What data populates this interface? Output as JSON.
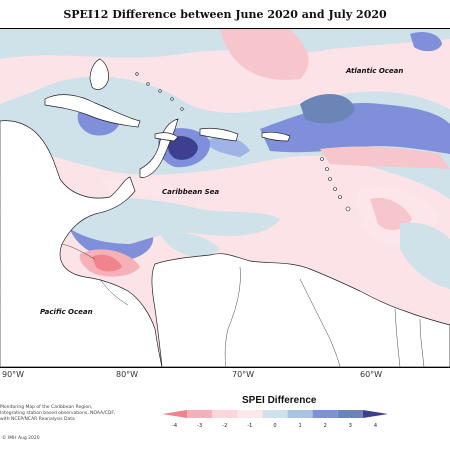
{
  "title": "SPEI12 Difference between June 2020 and July 2020",
  "map": {
    "labels": {
      "atlantic": "Atlantic Ocean",
      "caribbean": "Caribbean Sea",
      "pacific": "Pacific Ocean"
    },
    "longitude_labels": [
      "90°W",
      "80°W",
      "70°W",
      "60°W"
    ]
  },
  "legend": {
    "title": "SPEI Difference",
    "ticks": [
      "-4",
      "-3",
      "-2",
      "-1",
      "0",
      "1",
      "2",
      "3",
      "4"
    ],
    "colors": [
      "#f0848c",
      "#f6b1b8",
      "#fbd6da",
      "#fde9ec",
      "#cfe2ea",
      "#a9c3e3",
      "#7f8fd9",
      "#6b86b6",
      "#3d3f8f"
    ]
  },
  "credits": {
    "text": "Monitoring Map of the Caribbean Region, Integrating station based observations, NOAA/CDF, with NCEP/NCAR Reanalysis Data",
    "copyright": "© IMH Aug 2020"
  },
  "colors": {
    "pink_dry": "#f7c6cd",
    "light_pink": "#fde6ea",
    "light_blue": "#cfe2ea",
    "blue": "#9fb3e6",
    "dark_blue": "#6f7fd6",
    "navy": "#3d3f8f"
  }
}
